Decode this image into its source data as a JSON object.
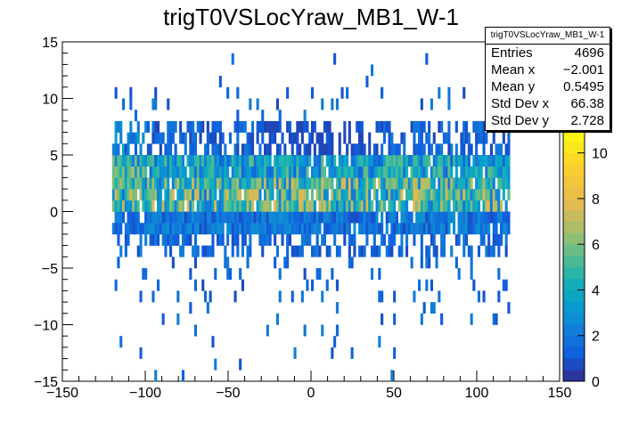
{
  "chart_data": {
    "type": "heatmap",
    "title": "trigT0VSLocYraw_MB1_W-1",
    "xlabel": "",
    "ylabel": "",
    "xlim": [
      -150,
      150
    ],
    "ylim": [
      -15,
      15
    ],
    "x_ticks": [
      -150,
      -100,
      -50,
      0,
      50,
      100,
      150
    ],
    "x_tick_labels": [
      "−150",
      "−100",
      "−50",
      "0",
      "50",
      "100",
      "150"
    ],
    "y_ticks": [
      -15,
      -10,
      -5,
      0,
      5,
      10,
      15
    ],
    "y_tick_labels": [
      "−15",
      "−10",
      "−5",
      "0",
      "5",
      "10",
      "15"
    ],
    "z_range": [
      0,
      11
    ],
    "z_ticks": [
      0,
      2,
      4,
      6,
      8,
      10
    ],
    "z_tick_labels": [
      "0",
      "2",
      "4",
      "6",
      "8",
      "10"
    ],
    "core_region": {
      "x": [
        -120,
        120
      ],
      "y": [
        -2,
        8
      ]
    },
    "bin_size": {
      "x": 1.5,
      "y": 1
    },
    "stats": {
      "name": "trigT0VSLocYraw_MB1_W-1",
      "rows": [
        {
          "label": "Entries",
          "value": "4696"
        },
        {
          "label": "Mean x",
          "value": "−2.001"
        },
        {
          "label": "Mean y",
          "value": "0.5495"
        },
        {
          "label": "Std Dev x",
          "value": "66.38"
        },
        {
          "label": "Std Dev y",
          "value": "2.728"
        }
      ]
    }
  }
}
